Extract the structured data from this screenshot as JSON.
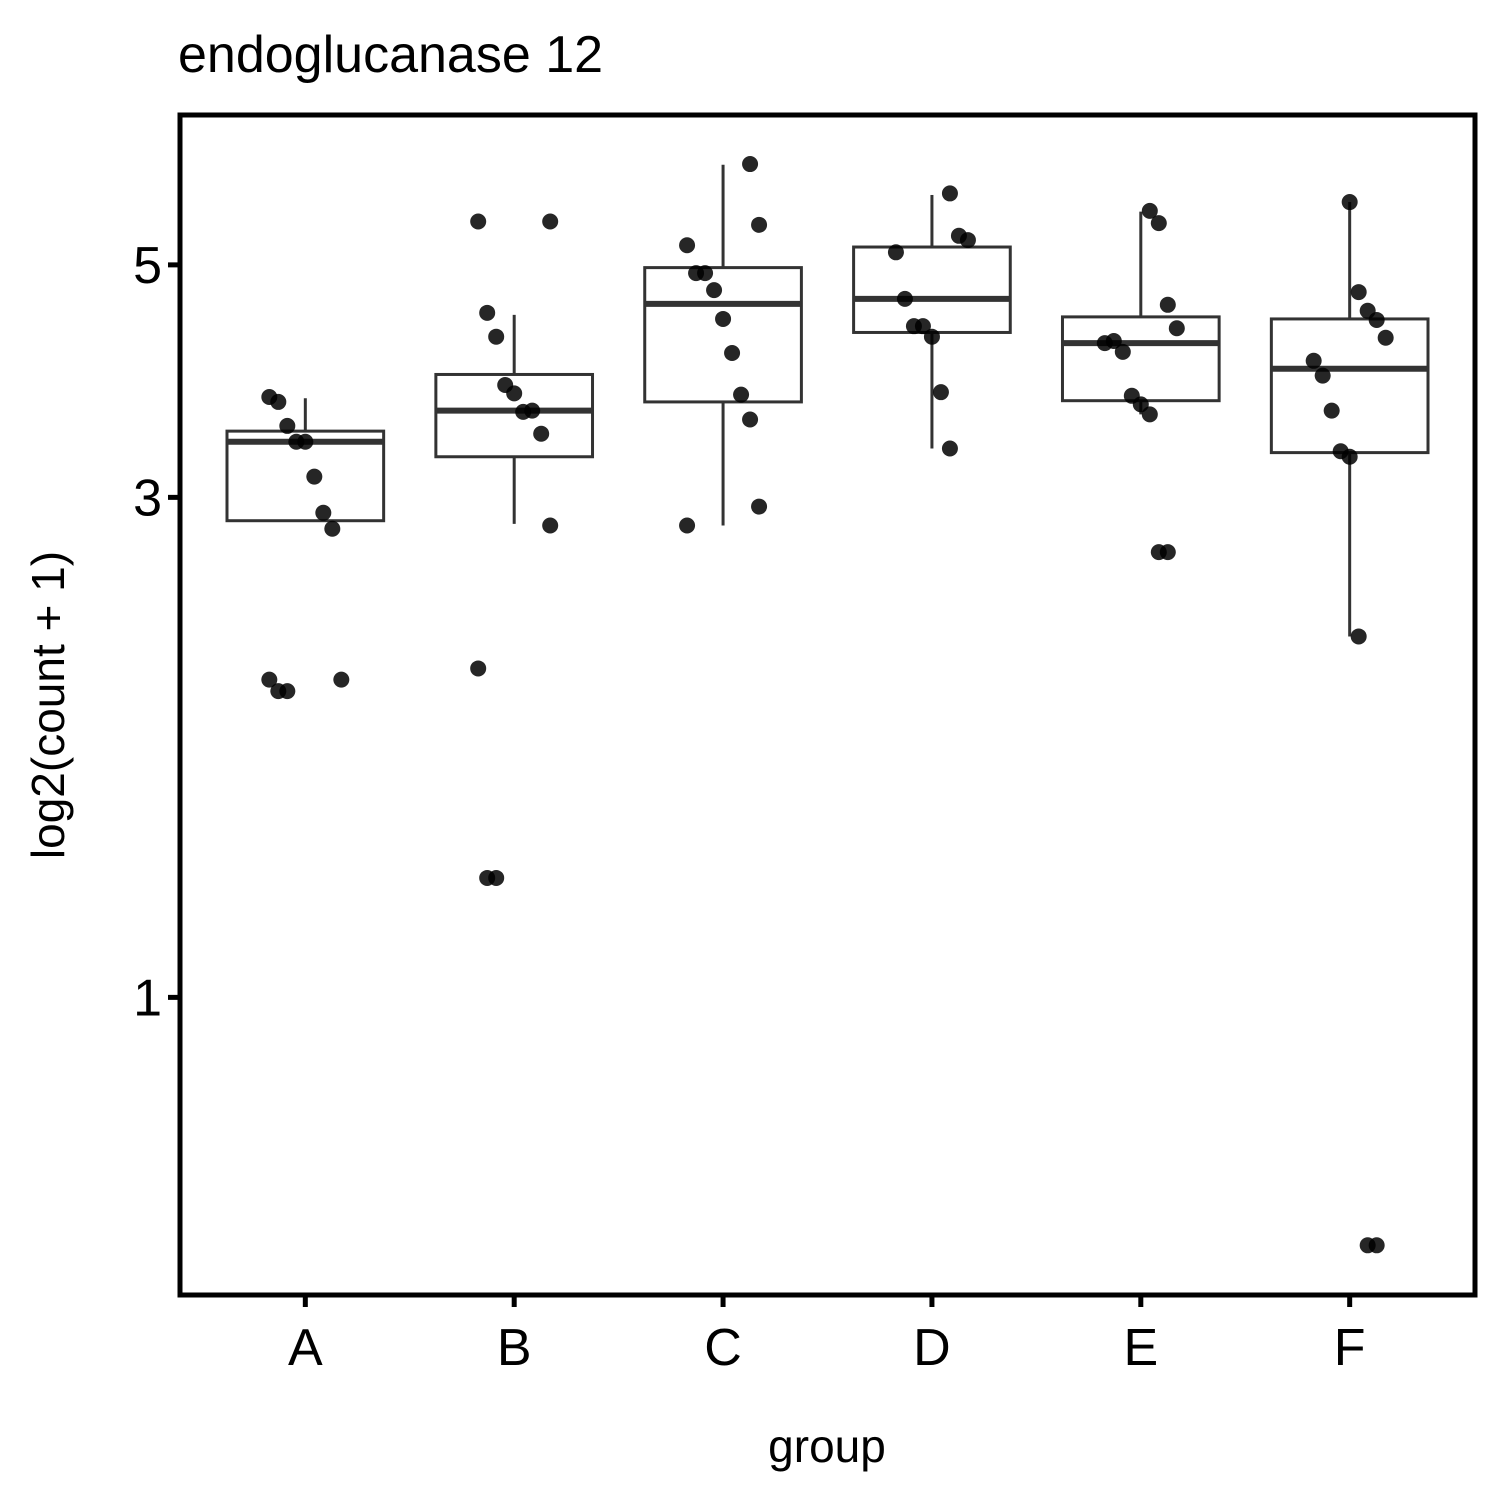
{
  "chart_data": {
    "type": "box",
    "title": "endoglucanase 12",
    "x_label": "group",
    "y_label": "log2(count + 1)",
    "log_scale": true,
    "ylim": [
      0.52,
      6.95
    ],
    "yticks": [
      1,
      3,
      5
    ],
    "box_color": "#333333",
    "point_color": "#000000",
    "boxes": [
      {
        "category": "A",
        "low": 2.85,
        "q1": 2.85,
        "median": 3.39,
        "q3": 3.47,
        "high": 3.73,
        "points": [
          3.74,
          3.7,
          3.51,
          3.39,
          3.39,
          3.14,
          2.9,
          2.8,
          2.01,
          2.01,
          1.96,
          1.96
        ]
      },
      {
        "category": "B",
        "low": 2.83,
        "q1": 3.28,
        "median": 3.63,
        "q3": 3.93,
        "high": 4.48,
        "points": [
          5.5,
          5.5,
          4.5,
          4.27,
          3.84,
          3.77,
          3.62,
          3.63,
          3.45,
          2.82,
          2.06,
          1.3,
          1.3
        ]
      },
      {
        "category": "C",
        "low": 2.82,
        "q1": 3.7,
        "median": 4.59,
        "q3": 4.97,
        "high": 6.23,
        "points": [
          6.24,
          5.46,
          5.22,
          4.91,
          4.91,
          4.73,
          4.44,
          4.12,
          3.76,
          3.56,
          2.94,
          2.82
        ]
      },
      {
        "category": "D",
        "low": 3.34,
        "q1": 4.31,
        "median": 4.64,
        "q3": 5.2,
        "high": 5.83,
        "points": [
          5.85,
          5.33,
          5.28,
          5.14,
          4.64,
          4.37,
          4.37,
          4.27,
          3.78,
          3.34
        ]
      },
      {
        "category": "E",
        "low": 3.6,
        "q1": 3.71,
        "median": 4.21,
        "q3": 4.46,
        "high": 5.62,
        "points": [
          5.63,
          5.48,
          4.58,
          4.35,
          4.21,
          4.23,
          4.13,
          3.75,
          3.68,
          3.6,
          2.66,
          2.66
        ]
      },
      {
        "category": "F",
        "low": 2.21,
        "q1": 3.31,
        "median": 3.98,
        "q3": 4.44,
        "high": 5.74,
        "points": [
          5.74,
          4.71,
          4.52,
          4.43,
          4.26,
          4.05,
          3.92,
          3.63,
          3.32,
          3.28,
          2.21,
          0.58,
          0.58
        ]
      }
    ]
  }
}
